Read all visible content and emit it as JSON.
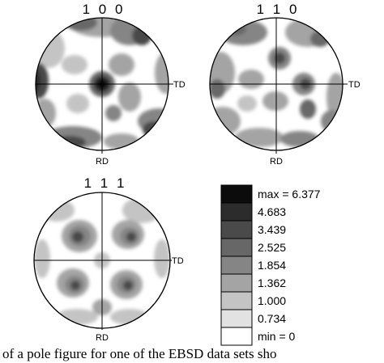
{
  "figures": [
    {
      "title": "1 0 0",
      "td_label": "TD",
      "rd_label": "RD"
    },
    {
      "title": "1 1 0",
      "td_label": "TD",
      "rd_label": "RD"
    },
    {
      "title": "1 1 1",
      "td_label": "TD",
      "rd_label": "RD"
    }
  ],
  "legend": {
    "entries": [
      {
        "label": "max = 6.377",
        "color": "#0c0c0c"
      },
      {
        "label": "4.683",
        "color": "#2c2c2c"
      },
      {
        "label": "3.439",
        "color": "#4a4a4a"
      },
      {
        "label": "2.525",
        "color": "#676767"
      },
      {
        "label": "1.854",
        "color": "#858585"
      },
      {
        "label": "1.362",
        "color": "#a4a4a4"
      },
      {
        "label": "1.000",
        "color": "#c4c4c4"
      },
      {
        "label": "0.734",
        "color": "#e2e2e2"
      },
      {
        "label": "min = 0",
        "color": "#ffffff"
      }
    ]
  },
  "caption": "of a pole figure for one of the EBSD data sets sho"
}
